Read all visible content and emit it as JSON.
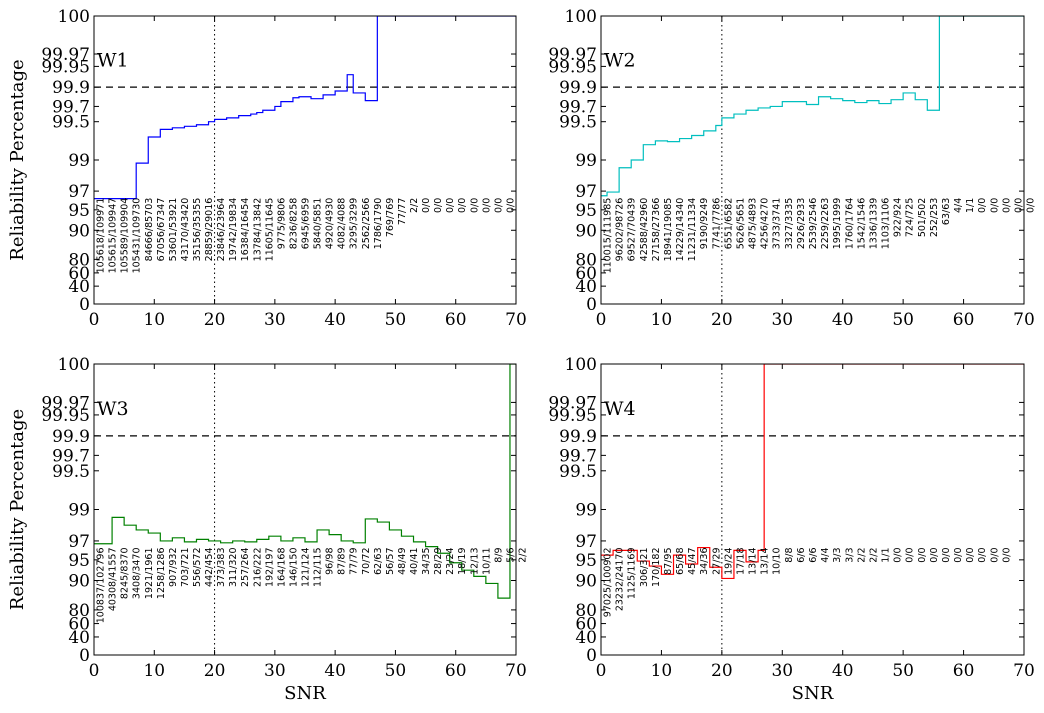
{
  "chart_data": [
    {
      "type": "line",
      "title": "W1",
      "color": "#0000ff",
      "xlabel": "",
      "ylabel": "Reliability Percentage",
      "xlim": [
        0,
        70
      ],
      "xticks": [
        "0",
        "10",
        "20",
        "30",
        "40",
        "50",
        "60",
        "70"
      ],
      "yticks": [
        "0",
        "40",
        "60",
        "80",
        "90",
        "95",
        "97",
        "99",
        "99.5",
        "99.7",
        "99.9",
        "99.95",
        "99.97",
        "100"
      ],
      "threshold": 99.9,
      "vline_x": 20,
      "x": [
        0,
        1,
        2,
        3,
        4,
        5,
        6,
        7,
        8,
        9,
        10,
        11,
        12,
        13,
        14,
        15,
        16,
        17,
        18,
        19,
        20,
        21,
        22,
        23,
        24,
        25,
        26,
        27,
        28,
        29,
        30,
        31,
        32,
        33,
        34,
        35,
        36,
        37,
        38,
        39,
        40,
        41,
        42,
        43,
        44,
        45,
        46,
        47,
        48,
        49,
        50,
        51,
        52,
        53,
        54,
        55,
        56,
        57,
        58,
        59,
        60,
        61,
        62,
        63,
        64,
        65,
        66,
        67,
        68,
        69
      ],
      "y": [
        96.2,
        96.2,
        96.2,
        96.2,
        96.2,
        96.2,
        96.2,
        98.8,
        98.8,
        99.3,
        99.3,
        99.4,
        99.4,
        99.42,
        99.42,
        99.44,
        99.44,
        99.46,
        99.46,
        99.5,
        99.53,
        99.53,
        99.55,
        99.55,
        99.58,
        99.58,
        99.6,
        99.62,
        99.65,
        99.65,
        99.7,
        99.75,
        99.75,
        99.79,
        99.8,
        99.8,
        99.78,
        99.78,
        99.82,
        99.82,
        99.86,
        99.86,
        99.93,
        99.84,
        99.84,
        99.76,
        99.76,
        100,
        100,
        100,
        100,
        100,
        100,
        100,
        100,
        100,
        100,
        100,
        100,
        100,
        100,
        100,
        100,
        100,
        100,
        100,
        100,
        100,
        100,
        100
      ],
      "annotations": [
        "105618/109971",
        "105615/109947",
        "105589/109904",
        "105431/109730",
        "84666/85703",
        "67056/67347",
        "53601/53921",
        "43170/43420",
        "35156/35355",
        "28859/29016",
        "23846/23964",
        "19742/19834",
        "16384/16454",
        "13784/13842",
        "11605/11645",
        "9775/9806",
        "8236/8258",
        "6945/6959",
        "5840/5851",
        "4920/4930",
        "4082/4088",
        "3295/3299",
        "2562/2566",
        "1786/1790",
        "769/769",
        "77/77",
        "2/2",
        "0/0",
        "0/0",
        "0/0",
        "0/0",
        "0/0",
        "0/0",
        "0/0",
        "0/0"
      ]
    },
    {
      "type": "line",
      "title": "W2",
      "color": "#00bfbf",
      "xlabel": "",
      "ylabel": "",
      "xlim": [
        0,
        70
      ],
      "xticks": [
        "0",
        "10",
        "20",
        "30",
        "40",
        "50",
        "60",
        "70"
      ],
      "yticks": [
        "0",
        "40",
        "60",
        "80",
        "90",
        "95",
        "97",
        "99",
        "99.5",
        "99.7",
        "99.9",
        "99.95",
        "99.97",
        "100"
      ],
      "threshold": 99.9,
      "vline_x": 20,
      "x": [
        0,
        1,
        2,
        3,
        4,
        5,
        6,
        7,
        8,
        9,
        10,
        11,
        12,
        13,
        14,
        15,
        16,
        17,
        18,
        19,
        20,
        21,
        22,
        23,
        24,
        25,
        26,
        27,
        28,
        29,
        30,
        31,
        32,
        33,
        34,
        35,
        36,
        37,
        38,
        39,
        40,
        41,
        42,
        43,
        44,
        45,
        46,
        47,
        48,
        49,
        50,
        51,
        52,
        53,
        54,
        55,
        56,
        57,
        58,
        59,
        60,
        61,
        62,
        63,
        64,
        65,
        66,
        67,
        68,
        69
      ],
      "y": [
        96.5,
        96.9,
        96.9,
        98.5,
        98.5,
        99.0,
        99.0,
        99.2,
        99.2,
        99.25,
        99.25,
        99.24,
        99.24,
        99.28,
        99.28,
        99.32,
        99.32,
        99.38,
        99.38,
        99.45,
        99.55,
        99.55,
        99.6,
        99.6,
        99.65,
        99.65,
        99.68,
        99.68,
        99.7,
        99.7,
        99.75,
        99.75,
        99.75,
        99.75,
        99.72,
        99.72,
        99.8,
        99.8,
        99.78,
        99.78,
        99.76,
        99.76,
        99.74,
        99.74,
        99.76,
        99.76,
        99.73,
        99.73,
        99.77,
        99.77,
        99.84,
        99.84,
        99.77,
        99.77,
        99.65,
        99.65,
        100,
        100,
        100,
        100,
        100,
        100,
        100,
        100,
        100,
        100,
        100,
        100,
        100,
        100
      ],
      "annotations": [
        "110015/111985",
        "96202/98726",
        "69527/70439",
        "42588/42960",
        "27158/27366",
        "18941/19085",
        "14229/14340",
        "11231/11334",
        "9190/9249",
        "7741/7786",
        "6551/6582",
        "5626/5651",
        "4875/4893",
        "4256/4270",
        "3733/3741",
        "3327/3335",
        "2926/2933",
        "2539/2546",
        "2259/2263",
        "1995/1999",
        "1760/1764",
        "1542/1546",
        "1336/1339",
        "1103/1106",
        "922/924",
        "724/725",
        "501/502",
        "252/253",
        "63/63",
        "4/4",
        "1/1",
        "0/0",
        "0/0",
        "0/0",
        "0/0",
        "0/0"
      ]
    },
    {
      "type": "line",
      "title": "W3",
      "color": "#008000",
      "xlabel": "SNR",
      "ylabel": "Reliability Percentage",
      "xlim": [
        0,
        70
      ],
      "xticks": [
        "0",
        "10",
        "20",
        "30",
        "40",
        "50",
        "60",
        "70"
      ],
      "yticks": [
        "0",
        "40",
        "60",
        "80",
        "90",
        "95",
        "97",
        "99",
        "99.5",
        "99.7",
        "99.9",
        "99.95",
        "99.97",
        "100"
      ],
      "threshold": 99.9,
      "vline_x": 20,
      "x": [
        0,
        1,
        2,
        3,
        4,
        5,
        6,
        7,
        8,
        9,
        10,
        11,
        12,
        13,
        14,
        15,
        16,
        17,
        18,
        19,
        20,
        21,
        22,
        23,
        24,
        25,
        26,
        27,
        28,
        29,
        30,
        31,
        32,
        33,
        34,
        35,
        36,
        37,
        38,
        39,
        40,
        41,
        42,
        43,
        44,
        45,
        46,
        47,
        48,
        49,
        50,
        51,
        52,
        53,
        54,
        55,
        56,
        57,
        58,
        59,
        60,
        61,
        62,
        63,
        64,
        65,
        66,
        67,
        68,
        69
      ],
      "y": [
        96.7,
        96.7,
        96.7,
        98.5,
        98.5,
        98.0,
        98.0,
        97.7,
        97.7,
        97.5,
        97.5,
        97.0,
        97.0,
        97.2,
        97.2,
        96.9,
        96.9,
        97.1,
        97.1,
        97.0,
        97.0,
        96.8,
        96.8,
        97.0,
        97.0,
        96.9,
        96.9,
        97.1,
        97.1,
        97.3,
        97.3,
        97.0,
        97.0,
        97.2,
        97.2,
        96.9,
        96.9,
        97.7,
        97.7,
        97.4,
        97.4,
        97.0,
        97.0,
        96.8,
        96.8,
        98.4,
        98.4,
        98.2,
        98.2,
        97.7,
        97.7,
        97.3,
        97.3,
        96.9,
        96.9,
        96.4,
        96.4,
        95.7,
        95.7,
        94.3,
        94.3,
        92.5,
        92.5,
        91.0,
        91.0,
        89.0,
        89.0,
        84.0,
        84.0,
        100
      ],
      "annotations": [
        "100837/102796",
        "40308/41557",
        "8245/8370",
        "3408/3470",
        "1921/1961",
        "1258/1286",
        "907/932",
        "703/721",
        "556/572",
        "442/454",
        "373/383",
        "311/320",
        "257/264",
        "216/222",
        "192/197",
        "164/168",
        "146/150",
        "121/124",
        "112/115",
        "96/98",
        "87/89",
        "77/79",
        "70/72",
        "62/63",
        "56/57",
        "48/49",
        "40/41",
        "34/35",
        "28/29",
        "23/24",
        "18/19",
        "12/13",
        "10/11",
        "8/9",
        "5/6",
        "2/2"
      ]
    },
    {
      "type": "line",
      "title": "W4",
      "color": "#ff0000",
      "xlabel": "SNR",
      "ylabel": "",
      "xlim": [
        0,
        70
      ],
      "xticks": [
        "0",
        "10",
        "20",
        "30",
        "40",
        "50",
        "60",
        "70"
      ],
      "yticks": [
        "0",
        "40",
        "60",
        "80",
        "90",
        "95",
        "97",
        "99",
        "99.5",
        "99.7",
        "99.9",
        "99.95",
        "99.97",
        "100"
      ],
      "threshold": 99.9,
      "vline_x": 20,
      "x": [
        0,
        1,
        2,
        3,
        4,
        5,
        6,
        7,
        8,
        9,
        10,
        11,
        12,
        13,
        14,
        15,
        16,
        17,
        18,
        19,
        20,
        21,
        22,
        23,
        24,
        25,
        26,
        27,
        28,
        29,
        30,
        31,
        32,
        33,
        34,
        35,
        36,
        37,
        38,
        39,
        40,
        41,
        42,
        43,
        44,
        45,
        46,
        47,
        48,
        49,
        50,
        51,
        52,
        53,
        54,
        55,
        56,
        57,
        58,
        59,
        60,
        61,
        62,
        63,
        64,
        65,
        66,
        67,
        68,
        69
      ],
      "y": [
        95.5,
        95.5,
        96.0,
        96.0,
        96.0,
        96.0,
        94.7,
        94.7,
        93.5,
        93.5,
        91.5,
        91.5,
        95.5,
        95.5,
        94.0,
        94.0,
        96.3,
        96.3,
        93.2,
        93.2,
        90.5,
        90.5,
        96.0,
        96.0,
        94.5,
        94.5,
        96.0,
        100,
        100,
        100,
        100,
        100,
        100,
        100,
        100,
        100,
        100,
        100,
        100,
        100,
        100,
        100,
        100,
        100,
        100,
        100,
        100,
        100,
        100,
        100,
        100,
        100,
        100,
        100,
        100,
        100,
        100,
        100,
        100,
        100,
        100,
        100,
        100,
        100,
        100,
        100,
        100,
        100,
        100,
        100
      ],
      "annotations": [
        "97025/100902",
        "23232/24170",
        "1125/1169",
        "306/321",
        "170/182",
        "87/95",
        "65/68",
        "45/47",
        "34/36",
        "27/29",
        "19/24",
        "17/18",
        "13/14",
        "13/14",
        "10/10",
        "8/8",
        "6/6",
        "6/6",
        "4/4",
        "3/3",
        "3/3",
        "2/2",
        "2/2",
        "1/1",
        "0/0",
        "0/0",
        "0/0",
        "0/0",
        "0/0",
        "0/0",
        "0/0",
        "0/0",
        "0/0",
        "0/0"
      ]
    }
  ]
}
